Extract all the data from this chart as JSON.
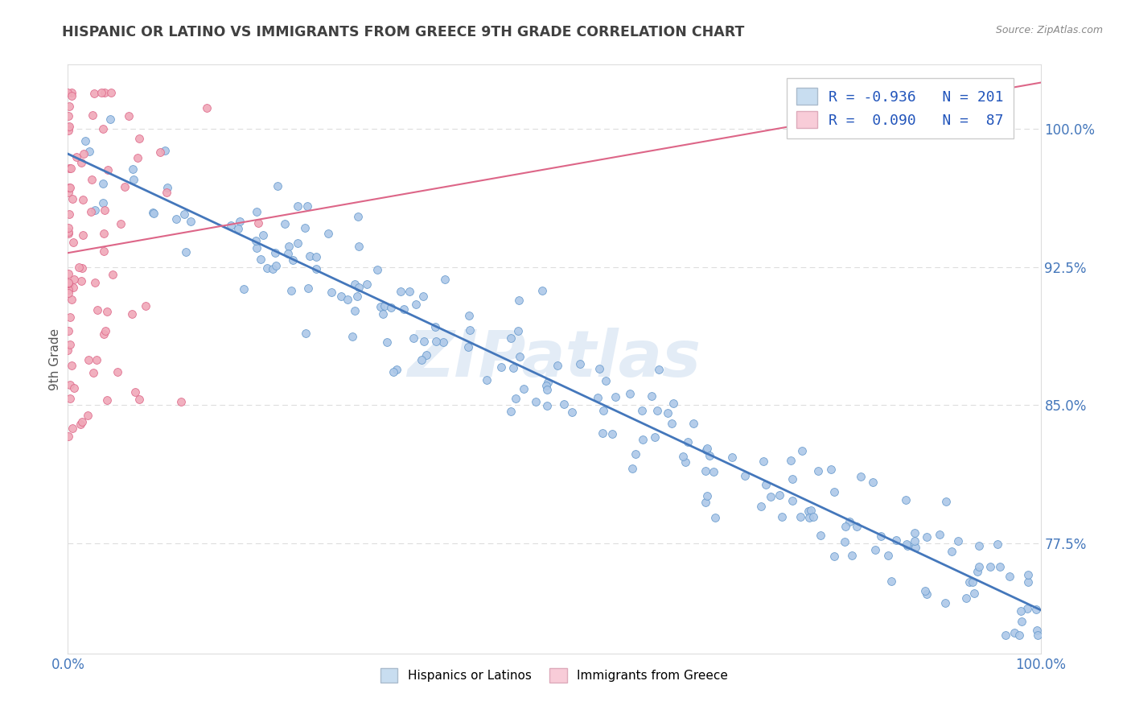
{
  "title": "HISPANIC OR LATINO VS IMMIGRANTS FROM GREECE 9TH GRADE CORRELATION CHART",
  "source_text": "Source: ZipAtlas.com",
  "ylabel": "9th Grade",
  "watermark": "ZIPatlas",
  "xmin": 0.0,
  "xmax": 1.0,
  "ymin": 0.715,
  "ymax": 1.035,
  "yticks": [
    0.775,
    0.85,
    0.925,
    1.0
  ],
  "ytick_labels": [
    "77.5%",
    "85.0%",
    "92.5%",
    "100.0%"
  ],
  "xtick_labels": [
    "0.0%",
    "100.0%"
  ],
  "blue_R": -0.936,
  "blue_N": 201,
  "pink_R": 0.09,
  "pink_N": 87,
  "blue_color": "#adc8e8",
  "pink_color": "#f0a8b8",
  "blue_edge_color": "#6699cc",
  "pink_edge_color": "#dd6688",
  "blue_line_color": "#4477bb",
  "pink_line_color": "#dd6688",
  "legend_blue_face": "#c8ddf0",
  "legend_pink_face": "#f8ccd8",
  "title_color": "#404040",
  "source_color": "#888888",
  "axis_label_color": "#555555",
  "tick_color": "#4477bb",
  "grid_color": "#dddddd",
  "watermark_color": "#ccddf0",
  "background_color": "#ffffff"
}
